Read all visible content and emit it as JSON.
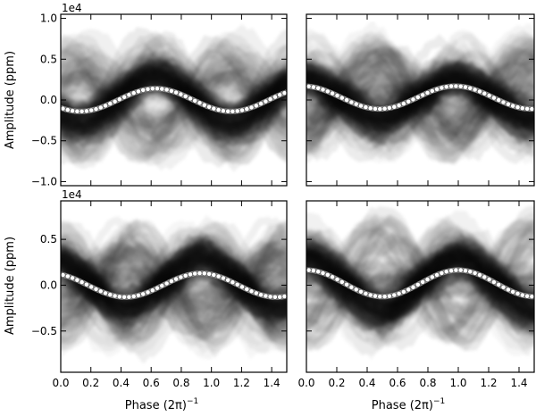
{
  "figure": {
    "xlabel": "Phase (2π)",
    "xlabel_exponent": "−1",
    "ylabel": "Amplitude (ppm)",
    "sci_notation": "1e4"
  },
  "chart_data": [
    {
      "type": "scatter",
      "panel": "top-left",
      "xlim": [
        0.0,
        1.5
      ],
      "ylim": [
        -1.05,
        1.05
      ],
      "x_ticks": [
        0.0,
        0.2,
        0.4,
        0.6,
        0.8,
        1.0,
        1.2,
        1.4
      ],
      "y_ticks": [
        -1.0,
        -0.5,
        0.0,
        0.5,
        1.0
      ],
      "y_tick_labels": [
        "−1.0",
        "−0.5",
        "0.0",
        "0.5",
        "1.0"
      ],
      "sci_notation": "1e4",
      "model": {
        "mean": 0.0,
        "amplitude": 0.14,
        "peak_phase": 0.63,
        "period": 1.0
      },
      "show_xtick_labels": false,
      "show_ytick_labels": true
    },
    {
      "type": "scatter",
      "panel": "top-right",
      "xlim": [
        0.0,
        1.5
      ],
      "ylim": [
        -1.05,
        1.05
      ],
      "x_ticks": [
        0.0,
        0.2,
        0.4,
        0.6,
        0.8,
        1.0,
        1.2,
        1.4
      ],
      "y_ticks": [
        -1.0,
        -0.5,
        0.0,
        0.5,
        1.0
      ],
      "model": {
        "mean": 0.03,
        "amplitude": 0.14,
        "peak_phase": 0.98,
        "period": 1.0
      },
      "show_xtick_labels": false,
      "show_ytick_labels": false
    },
    {
      "type": "scatter",
      "panel": "bottom-left",
      "xlim": [
        0.0,
        1.5
      ],
      "ylim": [
        -0.95,
        0.92
      ],
      "x_ticks": [
        0.0,
        0.2,
        0.4,
        0.6,
        0.8,
        1.0,
        1.2,
        1.4
      ],
      "x_tick_labels": [
        "0.0",
        "0.2",
        "0.4",
        "0.6",
        "0.8",
        "1.0",
        "1.2",
        "1.4"
      ],
      "y_ticks": [
        -0.5,
        0.0,
        0.5
      ],
      "y_tick_labels": [
        "−0.5",
        "0.0",
        "0.5"
      ],
      "sci_notation": "1e4",
      "model": {
        "mean": 0.0,
        "amplitude": 0.13,
        "peak_phase": 0.93,
        "period": 1.0
      },
      "show_xtick_labels": true,
      "show_ytick_labels": true
    },
    {
      "type": "scatter",
      "panel": "bottom-right",
      "xlim": [
        0.0,
        1.5
      ],
      "ylim": [
        -0.95,
        0.92
      ],
      "x_ticks": [
        0.0,
        0.2,
        0.4,
        0.6,
        0.8,
        1.0,
        1.2,
        1.4
      ],
      "x_tick_labels": [
        "0.0",
        "0.2",
        "0.4",
        "0.6",
        "0.8",
        "1.0",
        "1.2",
        "1.4"
      ],
      "y_ticks": [
        -0.5,
        0.0,
        0.5
      ],
      "model": {
        "mean": 0.02,
        "amplitude": 0.145,
        "peak_phase": 1.0,
        "period": 1.0
      },
      "show_xtick_labels": true,
      "show_ytick_labels": false
    }
  ]
}
